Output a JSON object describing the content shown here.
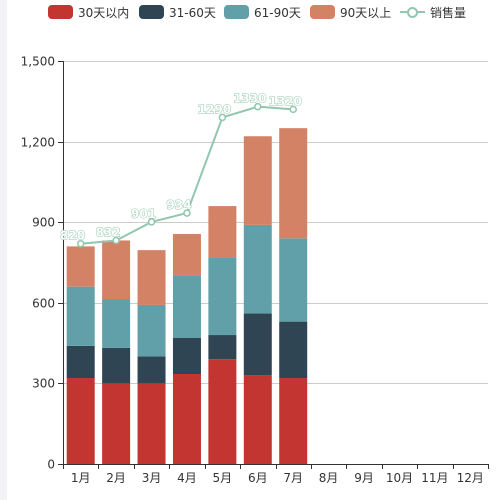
{
  "legend": {
    "items": [
      {
        "label": "30天以内",
        "color": "#c23531"
      },
      {
        "label": "31-60天",
        "color": "#2f4554"
      },
      {
        "label": "61-90天",
        "color": "#61a0a8"
      },
      {
        "label": "90天以上",
        "color": "#d48265"
      }
    ],
    "line_label": "销售量",
    "line_color": "#91c7ae"
  },
  "chart_data": {
    "type": "bar",
    "stacked": true,
    "categories": [
      "1月",
      "2月",
      "3月",
      "4月",
      "5月",
      "6月",
      "7月",
      "8月",
      "9月",
      "10月",
      "11月",
      "12月"
    ],
    "ylim": [
      0,
      1500
    ],
    "yticks": [
      0,
      300,
      600,
      900,
      1200,
      1500
    ],
    "ytick_labels": [
      "0",
      "300",
      "600",
      "900",
      "1,200",
      "1,500"
    ],
    "grid": true,
    "legend_position": "top",
    "series": [
      {
        "name": "30天以内",
        "type": "bar",
        "values": [
          320,
          300,
          300,
          335,
          390,
          330,
          320,
          null,
          null,
          null,
          null,
          null
        ]
      },
      {
        "name": "31-60天",
        "type": "bar",
        "values": [
          120,
          132,
          101,
          134,
          90,
          230,
          210,
          null,
          null,
          null,
          null,
          null
        ]
      },
      {
        "name": "61-90天",
        "type": "bar",
        "values": [
          220,
          182,
          191,
          234,
          290,
          330,
          310,
          null,
          null,
          null,
          null,
          null
        ]
      },
      {
        "name": "90天以上",
        "type": "bar",
        "values": [
          150,
          218,
          204,
          153,
          190,
          330,
          410,
          null,
          null,
          null,
          null,
          null
        ]
      },
      {
        "name": "销售量",
        "type": "line",
        "values": [
          820,
          832,
          901,
          934,
          1290,
          1330,
          1320,
          null,
          null,
          null,
          null,
          null
        ],
        "data_labels": [
          "820",
          "832",
          "901",
          "934",
          "1290",
          "1330",
          "1320"
        ]
      }
    ]
  }
}
